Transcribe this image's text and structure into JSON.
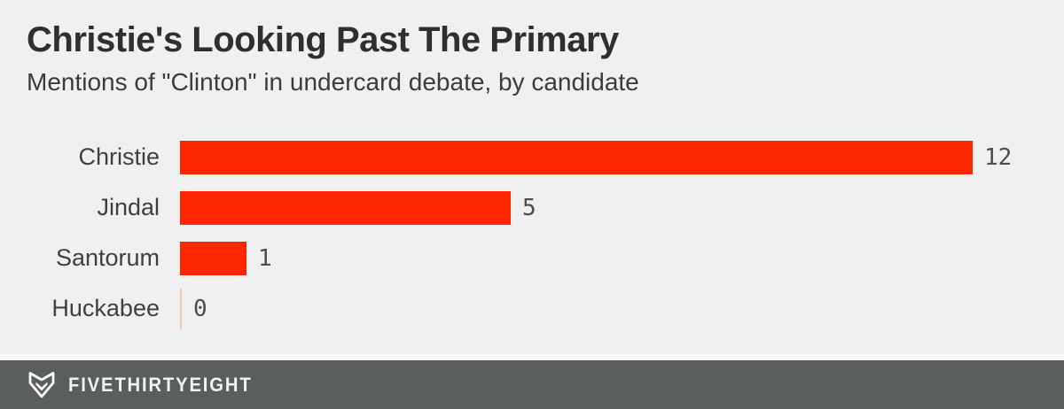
{
  "chart_data": {
    "type": "bar",
    "orientation": "horizontal",
    "title": "Christie's Looking Past The Primary",
    "subtitle": "Mentions of \"Clinton\" in undercard debate, by candidate",
    "categories": [
      "Christie",
      "Jindal",
      "Santorum",
      "Huckabee"
    ],
    "values": [
      12,
      5,
      1,
      0
    ],
    "value_labels": [
      "12",
      "5",
      "1",
      "0"
    ],
    "xlim": [
      0,
      12
    ],
    "grid": false,
    "legend": false,
    "bar_color": "#ff2700",
    "zero_marker_color": "#f2c5b8"
  },
  "footer": {
    "brand": "FIVETHIRTYEIGHT",
    "logo_icon": "fivethirtyeight-fox-logo",
    "background": "#5b5e5e",
    "text_color": "#f2f2f2"
  },
  "colors": {
    "page_background": "#f0f0f0",
    "title_text": "#2f2f2f",
    "subtitle_text": "#3c3c3c",
    "category_label_text": "#404040",
    "value_label_text": "#4d4d4d"
  }
}
